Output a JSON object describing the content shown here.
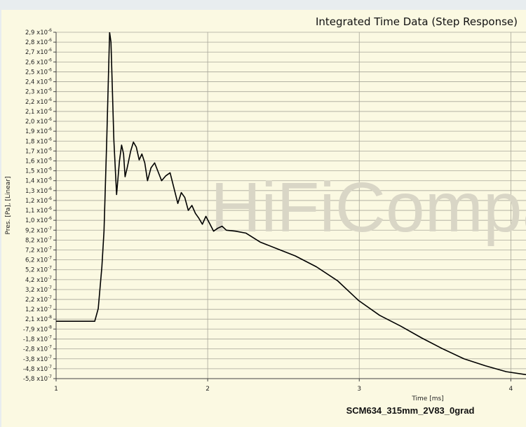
{
  "chart_data": {
    "type": "line",
    "title": "Integrated Time Data (Step Response)",
    "subtitle": "SCM634_315mm_2V83_0grad",
    "watermark": "HiFiCompass",
    "x_label": "Time [ms]",
    "y_label": "Pres. [Pa], [Linear]",
    "xlim": [
      1,
      4.1
    ],
    "xticks": [
      1,
      2,
      3,
      4
    ],
    "ylim": [
      -5.8e-07,
      2.92e-06
    ],
    "yticks": [
      {
        "value": -5.8e-07,
        "label": "-5,8 x10",
        "exponent": "-7"
      },
      {
        "value": -4.8e-07,
        "label": "-4,8 x10",
        "exponent": "-7"
      },
      {
        "value": -3.8e-07,
        "label": "-3,8 x10",
        "exponent": "-7"
      },
      {
        "value": -2.8e-07,
        "label": "-2,8 x10",
        "exponent": "-7"
      },
      {
        "value": -1.8e-07,
        "label": "-1,8 x10",
        "exponent": "-7"
      },
      {
        "value": -7.9e-08,
        "label": "-7,9 x10",
        "exponent": "-8"
      },
      {
        "value": 2.1e-08,
        "label": "2,1 x10",
        "exponent": "-8"
      },
      {
        "value": 1.2e-07,
        "label": "1,2 x10",
        "exponent": "-7"
      },
      {
        "value": 2.2e-07,
        "label": "2,2 x10",
        "exponent": "-7"
      },
      {
        "value": 3.2e-07,
        "label": "3,2 x10",
        "exponent": "-7"
      },
      {
        "value": 4.2e-07,
        "label": "4,2 x10",
        "exponent": "-7"
      },
      {
        "value": 5.2e-07,
        "label": "5,2 x10",
        "exponent": "-7"
      },
      {
        "value": 6.2e-07,
        "label": "6,2 x10",
        "exponent": "-7"
      },
      {
        "value": 7.2e-07,
        "label": "7,2 x10",
        "exponent": "-7"
      },
      {
        "value": 8.2e-07,
        "label": "8,2 x10",
        "exponent": "-7"
      },
      {
        "value": 9.2e-07,
        "label": "9,2 x10",
        "exponent": "-7"
      },
      {
        "value": 1.02e-06,
        "label": "1,0 x10",
        "exponent": "-6"
      },
      {
        "value": 1.12e-06,
        "label": "1,1 x10",
        "exponent": "-6"
      },
      {
        "value": 1.22e-06,
        "label": "1,2 x10",
        "exponent": "-6"
      },
      {
        "value": 1.32e-06,
        "label": "1,3 x10",
        "exponent": "-6"
      },
      {
        "value": 1.42e-06,
        "label": "1,4 x10",
        "exponent": "-6"
      },
      {
        "value": 1.52e-06,
        "label": "1,5 x10",
        "exponent": "-6"
      },
      {
        "value": 1.62e-06,
        "label": "1,6 x10",
        "exponent": "-6"
      },
      {
        "value": 1.72e-06,
        "label": "1,7 x10",
        "exponent": "-6"
      },
      {
        "value": 1.82e-06,
        "label": "1,8 x10",
        "exponent": "-6"
      },
      {
        "value": 1.92e-06,
        "label": "1,9 x10",
        "exponent": "-6"
      },
      {
        "value": 2.02e-06,
        "label": "2,0 x10",
        "exponent": "-6"
      },
      {
        "value": 2.12e-06,
        "label": "2,1 x10",
        "exponent": "-6"
      },
      {
        "value": 2.22e-06,
        "label": "2,2 x10",
        "exponent": "-6"
      },
      {
        "value": 2.32e-06,
        "label": "2,3 x10",
        "exponent": "-6"
      },
      {
        "value": 2.42e-06,
        "label": "2,4 x10",
        "exponent": "-6"
      },
      {
        "value": 2.52e-06,
        "label": "2,5 x10",
        "exponent": "-6"
      },
      {
        "value": 2.62e-06,
        "label": "2,6 x10",
        "exponent": "-6"
      },
      {
        "value": 2.72e-06,
        "label": "2,7 x10",
        "exponent": "-6"
      },
      {
        "value": 2.82e-06,
        "label": "2,8 x10",
        "exponent": "-6"
      },
      {
        "value": 2.92e-06,
        "label": "2,9 x10",
        "exponent": "-6"
      }
    ],
    "grid": true,
    "series": [
      {
        "color": "#000000",
        "x": [
          1.0,
          1.255,
          1.278,
          1.302,
          1.316,
          1.334,
          1.353,
          1.362,
          1.381,
          1.399,
          1.418,
          1.432,
          1.445,
          1.455,
          1.469,
          1.492,
          1.51,
          1.529,
          1.548,
          1.566,
          1.585,
          1.603,
          1.626,
          1.65,
          1.673,
          1.696,
          1.724,
          1.752,
          1.78,
          1.803,
          1.826,
          1.849,
          1.872,
          1.896,
          1.919,
          1.942,
          1.965,
          1.988,
          2.012,
          2.039,
          2.067,
          2.095,
          2.123,
          2.183,
          2.253,
          2.346,
          2.462,
          2.578,
          2.717,
          2.856,
          2.995,
          3.134,
          3.274,
          3.413,
          3.552,
          3.691,
          3.831,
          3.97,
          4.1
        ],
        "values": [
          0,
          0,
          1.28e-07,
          5.5e-07,
          9.1e-07,
          1.83e-06,
          2.92e-06,
          2.82e-06,
          1.83e-06,
          1.28e-06,
          1.62e-06,
          1.78e-06,
          1.69e-06,
          1.46e-06,
          1.55e-06,
          1.72e-06,
          1.81e-06,
          1.76e-06,
          1.63e-06,
          1.69e-06,
          1.6e-06,
          1.42e-06,
          1.55e-06,
          1.6e-06,
          1.51e-06,
          1.42e-06,
          1.47e-06,
          1.5e-06,
          1.33e-06,
          1.19e-06,
          1.3e-06,
          1.25e-06,
          1.12e-06,
          1.17e-06,
          1.09e-06,
          1.04e-06,
          9.8e-07,
          1.06e-06,
          9.9e-07,
          9.1e-07,
          9.4e-07,
          9.6e-07,
          9.2e-07,
          9.1e-07,
          8.9e-07,
          8e-07,
          7.3e-07,
          6.6e-07,
          5.5e-07,
          4.1e-07,
          2.1e-07,
          6e-08,
          -5e-08,
          -1.7e-07,
          -2.8e-07,
          -3.8e-07,
          -4.5e-07,
          -5.1e-07,
          -5.4e-07
        ]
      }
    ]
  }
}
